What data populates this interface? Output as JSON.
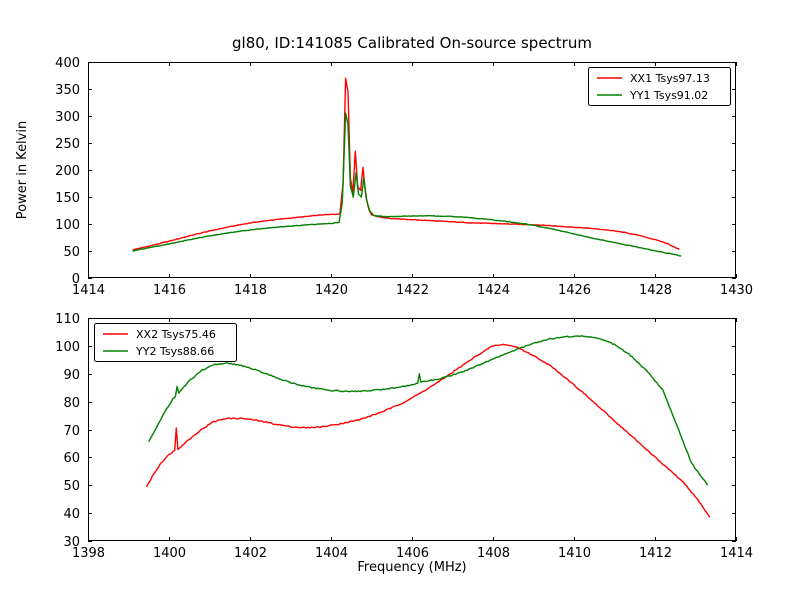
{
  "figure": {
    "background": "#ffffff",
    "axis_color": "#000000",
    "title": "gl80, ID:141085 Calibrated On-source spectrum",
    "ylabel": "Power in Kelvin",
    "xlabel": "Frequency (MHz)"
  },
  "chart_data": [
    {
      "type": "line",
      "title": "gl80, ID:141085 Calibrated On-source spectrum",
      "ylabel": "Power in Kelvin",
      "xlabel": "",
      "xlim": [
        1414,
        1430
      ],
      "ylim": [
        0,
        400
      ],
      "xticks": [
        1414,
        1416,
        1418,
        1420,
        1422,
        1424,
        1426,
        1428,
        1430
      ],
      "yticks": [
        0,
        50,
        100,
        150,
        200,
        250,
        300,
        350,
        400
      ],
      "grid": false,
      "legend_position": "top-right",
      "series": [
        {
          "name": "XX1 Tsys97.13",
          "color": "#ff0000",
          "points": [
            [
              1415.1,
              52
            ],
            [
              1415.5,
              59
            ],
            [
              1416,
              68
            ],
            [
              1416.5,
              78
            ],
            [
              1417,
              87
            ],
            [
              1417.5,
              95
            ],
            [
              1418,
              102
            ],
            [
              1418.5,
              107
            ],
            [
              1419,
              111
            ],
            [
              1419.4,
              114
            ],
            [
              1419.8,
              117
            ],
            [
              1420.1,
              118
            ],
            [
              1420.22,
              119
            ],
            [
              1420.3,
              175
            ],
            [
              1420.36,
              370
            ],
            [
              1420.42,
              345
            ],
            [
              1420.48,
              185
            ],
            [
              1420.54,
              158
            ],
            [
              1420.6,
              235
            ],
            [
              1420.66,
              170
            ],
            [
              1420.73,
              162
            ],
            [
              1420.79,
              205
            ],
            [
              1420.86,
              152
            ],
            [
              1420.93,
              128
            ],
            [
              1421.0,
              117
            ],
            [
              1421.2,
              113
            ],
            [
              1421.5,
              110
            ],
            [
              1422,
              108
            ],
            [
              1422.5,
              106
            ],
            [
              1423,
              104
            ],
            [
              1423.5,
              102
            ],
            [
              1424,
              101
            ],
            [
              1424.4,
              100
            ],
            [
              1424.8,
              99
            ],
            [
              1425.2,
              98
            ],
            [
              1425.6,
              96
            ],
            [
              1426,
              94
            ],
            [
              1426.4,
              92
            ],
            [
              1426.8,
              89
            ],
            [
              1427.2,
              85
            ],
            [
              1427.6,
              79
            ],
            [
              1428,
              71
            ],
            [
              1428.3,
              64
            ],
            [
              1428.6,
              53
            ]
          ]
        },
        {
          "name": "YY1 Tsys91.02",
          "color": "#008000",
          "points": [
            [
              1415.1,
              50
            ],
            [
              1415.5,
              56
            ],
            [
              1416,
              63
            ],
            [
              1416.5,
              71
            ],
            [
              1417,
              78
            ],
            [
              1417.5,
              84
            ],
            [
              1418,
              89
            ],
            [
              1418.5,
              93
            ],
            [
              1419,
              96
            ],
            [
              1419.5,
              99
            ],
            [
              1420,
              101
            ],
            [
              1420.2,
              103
            ],
            [
              1420.28,
              140
            ],
            [
              1420.36,
              305
            ],
            [
              1420.42,
              285
            ],
            [
              1420.48,
              170
            ],
            [
              1420.55,
              150
            ],
            [
              1420.62,
              195
            ],
            [
              1420.68,
              155
            ],
            [
              1420.75,
              150
            ],
            [
              1420.81,
              185
            ],
            [
              1420.88,
              145
            ],
            [
              1420.95,
              125
            ],
            [
              1421.05,
              116
            ],
            [
              1421.3,
              114
            ],
            [
              1421.7,
              114
            ],
            [
              1422.1,
              115
            ],
            [
              1422.5,
              115
            ],
            [
              1423,
              114
            ],
            [
              1423.4,
              112
            ],
            [
              1423.8,
              109
            ],
            [
              1424.2,
              106
            ],
            [
              1424.6,
              102
            ],
            [
              1424.9,
              99
            ],
            [
              1425.3,
              93
            ],
            [
              1425.7,
              87
            ],
            [
              1426.1,
              80
            ],
            [
              1426.5,
              73
            ],
            [
              1426.9,
              67
            ],
            [
              1427.3,
              61
            ],
            [
              1427.7,
              55
            ],
            [
              1428.1,
              49
            ],
            [
              1428.65,
              41
            ]
          ]
        }
      ]
    },
    {
      "type": "line",
      "title": "",
      "ylabel": "",
      "xlabel": "Frequency (MHz)",
      "xlim": [
        1398,
        1414
      ],
      "ylim": [
        30,
        110
      ],
      "xticks": [
        1398,
        1400,
        1402,
        1404,
        1406,
        1408,
        1410,
        1412,
        1414
      ],
      "yticks": [
        30,
        40,
        50,
        60,
        70,
        80,
        90,
        100,
        110
      ],
      "grid": false,
      "legend_position": "top-left",
      "series": [
        {
          "name": "XX2 Tsys75.46",
          "color": "#ff0000",
          "points": [
            [
              1399.45,
              49.5
            ],
            [
              1399.6,
              53.5
            ],
            [
              1399.8,
              58
            ],
            [
              1400.0,
              61
            ],
            [
              1400.14,
              62.5
            ],
            [
              1400.18,
              70.5
            ],
            [
              1400.22,
              63
            ],
            [
              1400.5,
              66.5
            ],
            [
              1400.8,
              70
            ],
            [
              1401.1,
              72.8
            ],
            [
              1401.4,
              74
            ],
            [
              1401.8,
              74
            ],
            [
              1402.2,
              73.2
            ],
            [
              1402.6,
              72
            ],
            [
              1403.0,
              71
            ],
            [
              1403.4,
              70.6
            ],
            [
              1403.8,
              71
            ],
            [
              1404.2,
              72
            ],
            [
              1404.7,
              73.5
            ],
            [
              1405.2,
              76
            ],
            [
              1405.7,
              79
            ],
            [
              1406.2,
              83
            ],
            [
              1406.7,
              87.5
            ],
            [
              1407.2,
              92.5
            ],
            [
              1407.6,
              96.5
            ],
            [
              1408.0,
              100
            ],
            [
              1408.3,
              100.5
            ],
            [
              1408.6,
              99.5
            ],
            [
              1409.0,
              96.5
            ],
            [
              1409.4,
              93
            ],
            [
              1409.8,
              88.5
            ],
            [
              1410.2,
              83.5
            ],
            [
              1410.7,
              77
            ],
            [
              1411.2,
              70.5
            ],
            [
              1411.7,
              64
            ],
            [
              1412.2,
              57.5
            ],
            [
              1412.7,
              51
            ],
            [
              1413.1,
              44
            ],
            [
              1413.35,
              38.5
            ]
          ]
        },
        {
          "name": "YY2 Tsys88.66",
          "color": "#008000",
          "points": [
            [
              1399.5,
              65.5
            ],
            [
              1399.7,
              71
            ],
            [
              1399.9,
              76.5
            ],
            [
              1400.1,
              81
            ],
            [
              1400.16,
              82
            ],
            [
              1400.2,
              85.5
            ],
            [
              1400.24,
              83
            ],
            [
              1400.5,
              87.5
            ],
            [
              1400.8,
              91
            ],
            [
              1401.1,
              93.2
            ],
            [
              1401.4,
              93.8
            ],
            [
              1401.7,
              93.3
            ],
            [
              1402.0,
              92
            ],
            [
              1402.4,
              90
            ],
            [
              1402.8,
              87.8
            ],
            [
              1403.2,
              86
            ],
            [
              1403.6,
              84.8
            ],
            [
              1404.0,
              84
            ],
            [
              1404.4,
              83.7
            ],
            [
              1404.8,
              83.8
            ],
            [
              1405.2,
              84.3
            ],
            [
              1405.6,
              85
            ],
            [
              1406.0,
              86
            ],
            [
              1406.14,
              86.5
            ],
            [
              1406.18,
              90
            ],
            [
              1406.22,
              87
            ],
            [
              1406.6,
              88
            ],
            [
              1407.0,
              89.5
            ],
            [
              1407.4,
              91.5
            ],
            [
              1407.8,
              94
            ],
            [
              1408.2,
              96.5
            ],
            [
              1408.6,
              98.8
            ],
            [
              1409.0,
              101
            ],
            [
              1409.4,
              102.5
            ],
            [
              1409.8,
              103.3
            ],
            [
              1410.2,
              103.5
            ],
            [
              1410.6,
              102.8
            ],
            [
              1411.0,
              100.5
            ],
            [
              1411.4,
              96.5
            ],
            [
              1411.8,
              91
            ],
            [
              1412.2,
              84
            ],
            [
              1412.9,
              58
            ],
            [
              1413.3,
              50
            ]
          ]
        }
      ]
    }
  ]
}
